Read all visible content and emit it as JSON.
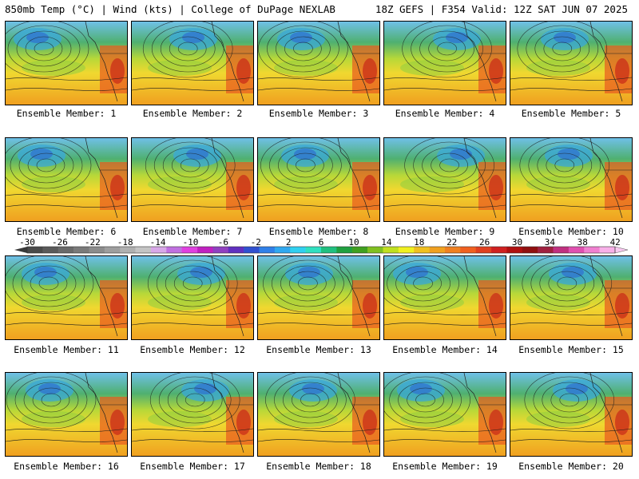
{
  "header": {
    "left": "850mb Temp (°C) | Wind (kts) | College of DuPage NEXLAB",
    "right": "18Z GEFS | F354 Valid: 12Z SAT JUN 07 2025"
  },
  "members": [
    "Ensemble Member: 1",
    "Ensemble Member: 2",
    "Ensemble Member: 3",
    "Ensemble Member: 4",
    "Ensemble Member: 5",
    "Ensemble Member: 6",
    "Ensemble Member: 7",
    "Ensemble Member: 8",
    "Ensemble Member: 9",
    "Ensemble Member: 10",
    "Ensemble Member: 11",
    "Ensemble Member: 12",
    "Ensemble Member: 13",
    "Ensemble Member: 14",
    "Ensemble Member: 15",
    "Ensemble Member: 16",
    "Ensemble Member: 17",
    "Ensemble Member: 18",
    "Ensemble Member: 19",
    "Ensemble Member: 20"
  ],
  "colorbar": {
    "ticks": [
      "-30",
      "-26",
      "-22",
      "-18",
      "-14",
      "-10",
      "-6",
      "-2",
      "2",
      "6",
      "10",
      "14",
      "18",
      "22",
      "26",
      "30",
      "34",
      "38",
      "42"
    ],
    "colors": [
      "#4a4a4a",
      "#5a5a5a",
      "#6a6a6a",
      "#7a7a7a",
      "#8c8c8c",
      "#9e9e9e",
      "#b0b0b0",
      "#c4c4c4",
      "#d8a8e8",
      "#c070e0",
      "#e040e0",
      "#c020c0",
      "#9040c0",
      "#6030c0",
      "#3050d0",
      "#3080e8",
      "#30a8f0",
      "#30d0f0",
      "#30e0c0",
      "#20c080",
      "#20a040",
      "#40a020",
      "#80c020",
      "#c0e020",
      "#f0f020",
      "#f0c020",
      "#f0a020",
      "#f08020",
      "#f06020",
      "#e04020",
      "#d02020",
      "#b01010",
      "#901010",
      "#a02040",
      "#c03080",
      "#e050b0",
      "#f080d0",
      "#f8b0e8"
    ]
  }
}
